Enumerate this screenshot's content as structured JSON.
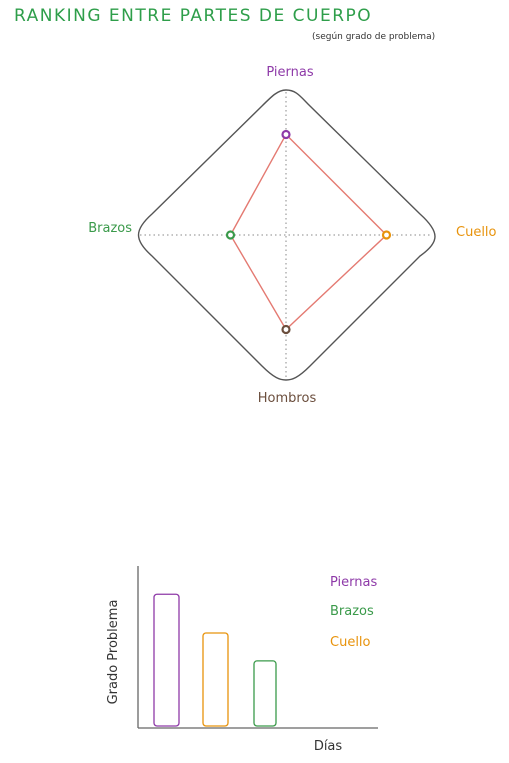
{
  "header": {
    "title": "RANKING ENTRE PARTES DE CUERPO",
    "subtitle": "(según grado de problema)"
  },
  "colors": {
    "title": "#2e9e4a",
    "piernas": "#8e3aa8",
    "brazos": "#3a9a4a",
    "cuello": "#e8930c",
    "hombros": "#6b4e3d",
    "polygon": "#e47a72",
    "frame": "#555555"
  },
  "chart_data": [
    {
      "type": "radar",
      "axes": [
        "Piernas",
        "Cuello",
        "Hombros",
        "Brazos"
      ],
      "values": [
        0.67,
        0.67,
        0.63,
        0.37
      ],
      "range": [
        0,
        1
      ],
      "grid": true
    },
    {
      "type": "bar",
      "categories": [
        "Piernas",
        "Cuello",
        "Brazos"
      ],
      "values": [
        0.85,
        0.6,
        0.42
      ],
      "xlabel": "Días",
      "ylabel": "Grado Problema",
      "legend": [
        "Piernas",
        "Brazos",
        "Cuello"
      ],
      "legend_position": "right"
    }
  ]
}
